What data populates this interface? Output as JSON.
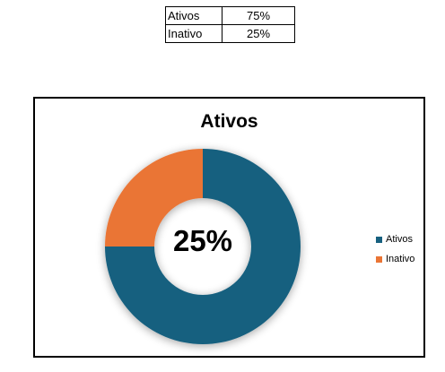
{
  "table": {
    "rows": [
      {
        "label": "Ativos",
        "value": "75%"
      },
      {
        "label": "Inativo",
        "value": "25%"
      }
    ]
  },
  "chart_data": {
    "type": "pie",
    "donut": true,
    "title": "Ativos",
    "center_label": "25%",
    "categories": [
      "Ativos",
      "Inativo"
    ],
    "values": [
      75,
      25
    ],
    "colors": [
      "#17607f",
      "#ea7535"
    ],
    "legend": "right",
    "series": [
      {
        "values": [
          75,
          25
        ]
      }
    ]
  }
}
